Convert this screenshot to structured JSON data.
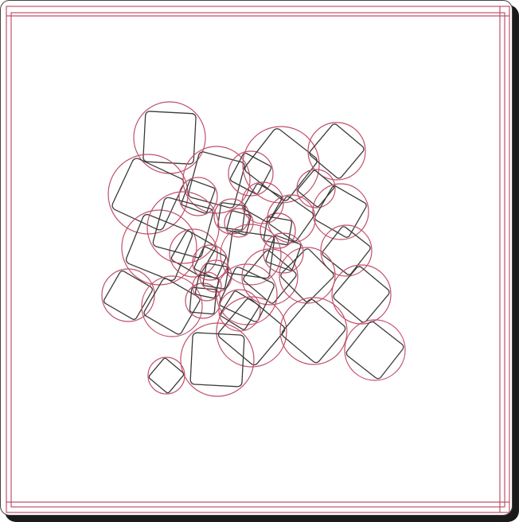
{
  "colors": {
    "circle_stroke": "#c0506a",
    "square_stroke": "#3a3a3a",
    "boundary_stroke": "#c0506a",
    "background": "#ffffff"
  },
  "diagram": {
    "description_visible_text": "",
    "shape_count": 36
  }
}
